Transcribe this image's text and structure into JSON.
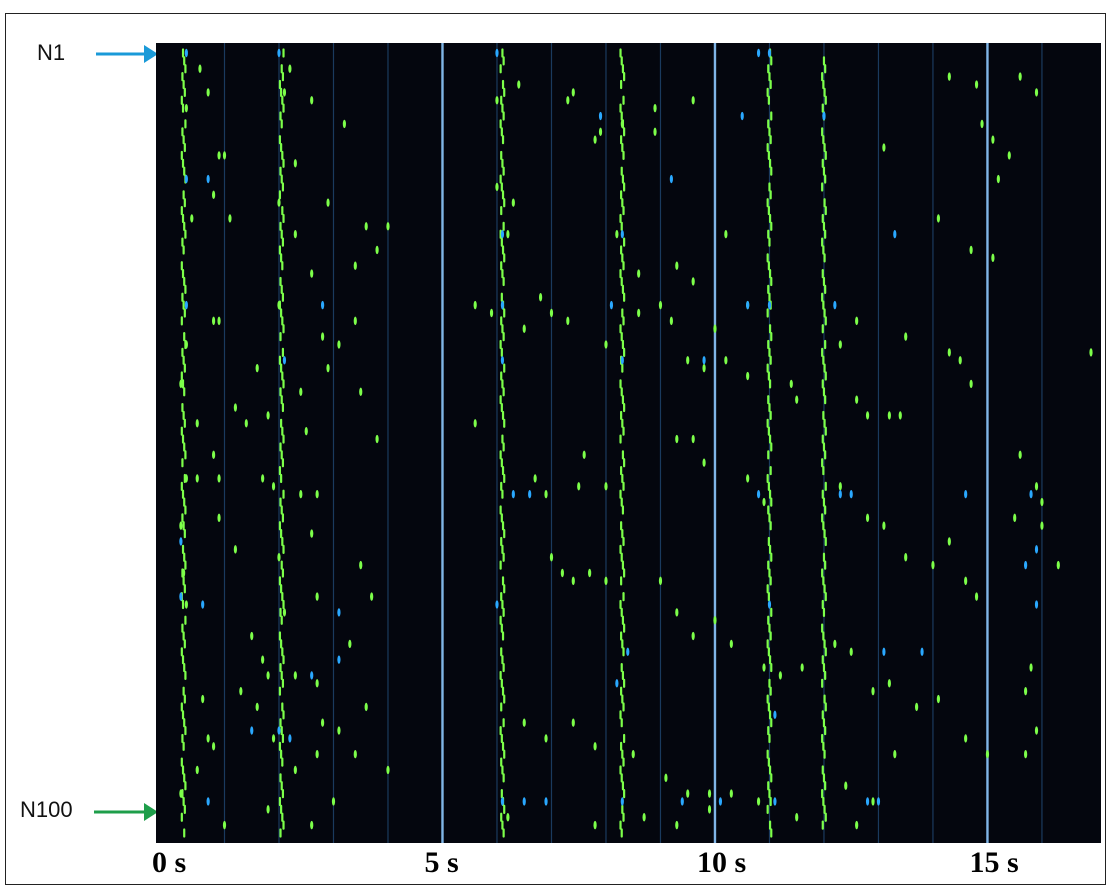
{
  "colors": {
    "background": "#04060e",
    "green_spike": "#7dff4a",
    "blue_spike": "#2aa8ff",
    "stimulus_line": "#8ec9ff",
    "grid_line": "#1a3a5e",
    "arrow_top": "#1a9ad8",
    "arrow_bottom": "#1e9e4a"
  },
  "labels": {
    "top_neuron": "N1",
    "bottom_neuron": "N100"
  },
  "chart_data": {
    "type": "scatter",
    "description_kind": "raster",
    "x_unit": "s",
    "xlim": [
      0,
      16.9
    ],
    "ylim": [
      1,
      100
    ],
    "y_inverted": true,
    "x_tick_labels": [
      {
        "value": 0,
        "label": "0 s"
      },
      {
        "value": 5,
        "label": "5 s"
      },
      {
        "value": 10,
        "label": "10 s"
      },
      {
        "value": 15,
        "label": "15 s"
      }
    ],
    "stimulus_lines_s": [
      5,
      10,
      15
    ],
    "grid_lines_s": [
      1,
      2,
      3,
      4,
      6,
      7,
      8,
      9,
      11,
      12,
      13,
      14,
      16
    ],
    "burst_columns_s": [
      0.25,
      2.05,
      6.1,
      8.3,
      11.0,
      12.0
    ],
    "series": [
      {
        "color_key": "green_spike",
        "spikes": [
          [
            0.55,
            3
          ],
          [
            0.7,
            6
          ],
          [
            0.3,
            8
          ],
          [
            2.2,
            3
          ],
          [
            2.1,
            6
          ],
          [
            2.6,
            7
          ],
          [
            3.2,
            10
          ],
          [
            1.0,
            14
          ],
          [
            0.9,
            14
          ],
          [
            2.3,
            15
          ],
          [
            0.8,
            19
          ],
          [
            2.0,
            20
          ],
          [
            2.9,
            20
          ],
          [
            0.4,
            22
          ],
          [
            1.1,
            22
          ],
          [
            2.3,
            24
          ],
          [
            4.0,
            23
          ],
          [
            3.6,
            23
          ],
          [
            3.4,
            28
          ],
          [
            3.8,
            26
          ],
          [
            2.6,
            29
          ],
          [
            2.0,
            33
          ],
          [
            0.9,
            35
          ],
          [
            2.8,
            37
          ],
          [
            3.4,
            35
          ],
          [
            0.8,
            35
          ],
          [
            1.6,
            41
          ],
          [
            2.9,
            41
          ],
          [
            2.5,
            49
          ],
          [
            1.8,
            47
          ],
          [
            3.1,
            38
          ],
          [
            3.5,
            44
          ],
          [
            2.4,
            44
          ],
          [
            1.2,
            46
          ],
          [
            1.4,
            48
          ],
          [
            0.5,
            48
          ],
          [
            0.8,
            52
          ],
          [
            3.8,
            50
          ],
          [
            5.6,
            48
          ],
          [
            0.3,
            55
          ],
          [
            0.5,
            55
          ],
          [
            0.9,
            55
          ],
          [
            1.7,
            55
          ],
          [
            1.9,
            56
          ],
          [
            2.4,
            57
          ],
          [
            2.7,
            57
          ],
          [
            0.2,
            61
          ],
          [
            0.9,
            60
          ],
          [
            2.6,
            62
          ],
          [
            1.2,
            64
          ],
          [
            2.0,
            65
          ],
          [
            2.7,
            70
          ],
          [
            3.5,
            66
          ],
          [
            3.7,
            70
          ],
          [
            2.1,
            72
          ],
          [
            1.5,
            75
          ],
          [
            3.3,
            76
          ],
          [
            1.7,
            78
          ],
          [
            2.3,
            80
          ],
          [
            2.7,
            81
          ],
          [
            1.3,
            82
          ],
          [
            1.8,
            80
          ],
          [
            0.6,
            83
          ],
          [
            3.6,
            84
          ],
          [
            1.6,
            84
          ],
          [
            2.8,
            86
          ],
          [
            3.1,
            87
          ],
          [
            0.7,
            88
          ],
          [
            0.8,
            89
          ],
          [
            1.9,
            88
          ],
          [
            2.7,
            90
          ],
          [
            2.3,
            92
          ],
          [
            3.4,
            90
          ],
          [
            0.5,
            92
          ],
          [
            4.0,
            92
          ],
          [
            3.0,
            96
          ],
          [
            1.8,
            97
          ],
          [
            1.0,
            99
          ],
          [
            2.6,
            99
          ],
          [
            0.2,
            95
          ],
          [
            0.3,
            71
          ],
          [
            0.25,
            67
          ],
          [
            0.2,
            43
          ],
          [
            0.3,
            38
          ],
          [
            6.4,
            5
          ],
          [
            6.0,
            7
          ],
          [
            7.3,
            7
          ],
          [
            7.4,
            6
          ],
          [
            8.3,
            10
          ],
          [
            8.9,
            8
          ],
          [
            8.9,
            11
          ],
          [
            9.6,
            7
          ],
          [
            7.9,
            11
          ],
          [
            7.8,
            12
          ],
          [
            6.0,
            18
          ],
          [
            6.3,
            20
          ],
          [
            6.2,
            24
          ],
          [
            8.2,
            24
          ],
          [
            8.6,
            29
          ],
          [
            9.3,
            28
          ],
          [
            9.6,
            30
          ],
          [
            10.2,
            24
          ],
          [
            5.6,
            33
          ],
          [
            5.9,
            34
          ],
          [
            6.5,
            36
          ],
          [
            6.8,
            32
          ],
          [
            7.0,
            34
          ],
          [
            7.3,
            35
          ],
          [
            8.0,
            38
          ],
          [
            8.6,
            34
          ],
          [
            9.0,
            33
          ],
          [
            9.2,
            35
          ],
          [
            10.0,
            36
          ],
          [
            10.6,
            33
          ],
          [
            9.5,
            40
          ],
          [
            9.8,
            41
          ],
          [
            10.2,
            40
          ],
          [
            10.6,
            42
          ],
          [
            11.4,
            43
          ],
          [
            11.5,
            45
          ],
          [
            12.6,
            45
          ],
          [
            12.8,
            47
          ],
          [
            13.2,
            47
          ],
          [
            13.5,
            37
          ],
          [
            14.5,
            40
          ],
          [
            14.7,
            43
          ],
          [
            13.4,
            47
          ],
          [
            12.6,
            35
          ],
          [
            12.3,
            38
          ],
          [
            6.7,
            55
          ],
          [
            6.9,
            57
          ],
          [
            7.5,
            56
          ],
          [
            8.0,
            56
          ],
          [
            7.6,
            52
          ],
          [
            9.3,
            50
          ],
          [
            9.6,
            50
          ],
          [
            9.8,
            53
          ],
          [
            10.6,
            55
          ],
          [
            10.9,
            58
          ],
          [
            12.3,
            56
          ],
          [
            12.8,
            60
          ],
          [
            13.1,
            61
          ],
          [
            13.5,
            65
          ],
          [
            14.0,
            66
          ],
          [
            14.3,
            63
          ],
          [
            14.6,
            68
          ],
          [
            14.8,
            70
          ],
          [
            7.0,
            65
          ],
          [
            7.2,
            67
          ],
          [
            7.4,
            68
          ],
          [
            7.7,
            67
          ],
          [
            8.0,
            68
          ],
          [
            9.0,
            68
          ],
          [
            9.3,
            72
          ],
          [
            9.6,
            75
          ],
          [
            10.0,
            73
          ],
          [
            10.3,
            76
          ],
          [
            10.9,
            79
          ],
          [
            11.2,
            80
          ],
          [
            11.6,
            79
          ],
          [
            12.2,
            76
          ],
          [
            12.5,
            77
          ],
          [
            12.9,
            82
          ],
          [
            13.2,
            81
          ],
          [
            13.7,
            84
          ],
          [
            14.1,
            83
          ],
          [
            14.6,
            88
          ],
          [
            15.0,
            90
          ],
          [
            15.7,
            82
          ],
          [
            15.8,
            79
          ],
          [
            15.9,
            87
          ],
          [
            15.7,
            90
          ],
          [
            6.5,
            86
          ],
          [
            6.9,
            88
          ],
          [
            7.4,
            86
          ],
          [
            7.8,
            89
          ],
          [
            8.5,
            90
          ],
          [
            9.1,
            93
          ],
          [
            9.5,
            95
          ],
          [
            9.9,
            95
          ],
          [
            10.3,
            95
          ],
          [
            10.8,
            96
          ],
          [
            12.4,
            94
          ],
          [
            12.9,
            96
          ],
          [
            13.3,
            90
          ],
          [
            6.2,
            98
          ],
          [
            7.8,
            99
          ],
          [
            8.7,
            98
          ],
          [
            9.3,
            99
          ],
          [
            9.9,
            97
          ],
          [
            11.5,
            98
          ],
          [
            12.6,
            99
          ],
          [
            14.8,
            5
          ],
          [
            14.9,
            10
          ],
          [
            15.1,
            12
          ],
          [
            15.2,
            17
          ],
          [
            15.4,
            14
          ],
          [
            15.6,
            4
          ],
          [
            15.9,
            6
          ],
          [
            16.9,
            39
          ],
          [
            14.3,
            4
          ],
          [
            13.1,
            13
          ],
          [
            14.1,
            22
          ],
          [
            14.7,
            26
          ],
          [
            15.1,
            27
          ],
          [
            14.3,
            39
          ],
          [
            15.6,
            52
          ],
          [
            15.9,
            56
          ],
          [
            16.0,
            58
          ],
          [
            16.0,
            61
          ],
          [
            16.3,
            66
          ],
          [
            15.5,
            60
          ]
        ]
      },
      {
        "color_key": "blue_spike",
        "spikes": [
          [
            0.3,
            1
          ],
          [
            0.3,
            17
          ],
          [
            0.7,
            17
          ],
          [
            2.0,
            1
          ],
          [
            0.3,
            33
          ],
          [
            2.8,
            33
          ],
          [
            2.1,
            40
          ],
          [
            0.2,
            63
          ],
          [
            0.2,
            70
          ],
          [
            0.6,
            71
          ],
          [
            3.1,
            72
          ],
          [
            3.1,
            78
          ],
          [
            2.6,
            80
          ],
          [
            1.5,
            87
          ],
          [
            2.0,
            87
          ],
          [
            2.2,
            88
          ],
          [
            0.7,
            96
          ],
          [
            6.0,
            1
          ],
          [
            6.1,
            24
          ],
          [
            6.1,
            33
          ],
          [
            6.1,
            40
          ],
          [
            6.3,
            57
          ],
          [
            6.0,
            71
          ],
          [
            6.1,
            96
          ],
          [
            6.5,
            96
          ],
          [
            6.6,
            57
          ],
          [
            6.9,
            96
          ],
          [
            8.3,
            24
          ],
          [
            8.3,
            40
          ],
          [
            8.1,
            33
          ],
          [
            8.4,
            77
          ],
          [
            8.2,
            81
          ],
          [
            8.3,
            96
          ],
          [
            7.9,
            9
          ],
          [
            9.2,
            17
          ],
          [
            9.8,
            40
          ],
          [
            9.4,
            96
          ],
          [
            10.8,
            1
          ],
          [
            11.0,
            1
          ],
          [
            10.5,
            9
          ],
          [
            10.6,
            33
          ],
          [
            11.0,
            33
          ],
          [
            10.8,
            57
          ],
          [
            11.0,
            71
          ],
          [
            11.1,
            85
          ],
          [
            11.1,
            96
          ],
          [
            10.1,
            96
          ],
          [
            12.0,
            9
          ],
          [
            12.0,
            9
          ],
          [
            12.2,
            33
          ],
          [
            12.3,
            57
          ],
          [
            12.5,
            57
          ],
          [
            12.8,
            96
          ],
          [
            13.0,
            96
          ],
          [
            13.1,
            77
          ],
          [
            13.8,
            77
          ],
          [
            13.3,
            24
          ],
          [
            14.6,
            57
          ],
          [
            15.8,
            57
          ],
          [
            15.7,
            66
          ],
          [
            15.9,
            71
          ],
          [
            15.9,
            64
          ]
        ]
      }
    ]
  }
}
